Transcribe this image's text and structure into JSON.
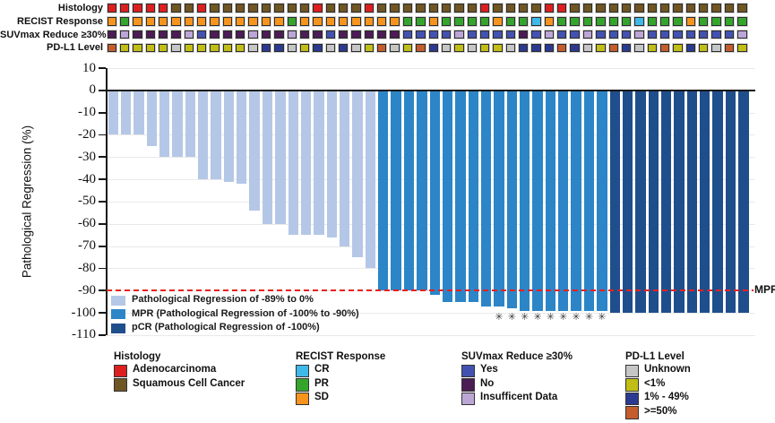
{
  "tracks": {
    "rows": [
      {
        "label": "Histology",
        "key": "histology",
        "cells": [
          "A",
          "A",
          "A",
          "A",
          "A",
          "S",
          "S",
          "A",
          "S",
          "S",
          "S",
          "S",
          "S",
          "S",
          "S",
          "S",
          "A",
          "S",
          "S",
          "S",
          "A",
          "S",
          "S",
          "S",
          "S",
          "S",
          "S",
          "S",
          "S",
          "A",
          "S",
          "S",
          "S",
          "S",
          "A",
          "A",
          "S",
          "S",
          "S",
          "S",
          "S",
          "S",
          "S",
          "S",
          "S",
          "S",
          "S",
          "S",
          "S",
          "S"
        ]
      },
      {
        "label": "RECIST Response",
        "key": "recist",
        "cells": [
          "SD",
          "PR",
          "SD",
          "SD",
          "SD",
          "SD",
          "SD",
          "SD",
          "SD",
          "SD",
          "SD",
          "SD",
          "SD",
          "SD",
          "PR",
          "SD",
          "SD",
          "SD",
          "SD",
          "SD",
          "SD",
          "SD",
          "SD",
          "PR",
          "PR",
          "SD",
          "PR",
          "PR",
          "PR",
          "PR",
          "SD",
          "PR",
          "PR",
          "CR",
          "SD",
          "PR",
          "PR",
          "PR",
          "PR",
          "PR",
          "PR",
          "CR",
          "PR",
          "PR",
          "PR",
          "SD",
          "PR",
          "PR",
          "PR",
          "PR"
        ]
      },
      {
        "label": "SUVmax Reduce ≥30%",
        "key": "suv",
        "cells": [
          "N",
          "I",
          "N",
          "N",
          "N",
          "N",
          "I",
          "Y",
          "N",
          "N",
          "N",
          "I",
          "N",
          "N",
          "I",
          "N",
          "N",
          "Y",
          "N",
          "N",
          "N",
          "N",
          "N",
          "Y",
          "Y",
          "Y",
          "Y",
          "I",
          "Y",
          "Y",
          "Y",
          "Y",
          "N",
          "Y",
          "I",
          "Y",
          "Y",
          "I",
          "Y",
          "Y",
          "Y",
          "I",
          "Y",
          "Y",
          "Y",
          "Y",
          "Y",
          "Y",
          "Y",
          "I"
        ]
      },
      {
        "label": "PD-L1 Level",
        "key": "pdl1",
        "cells": [
          "H",
          "L",
          "L",
          "L",
          "L",
          "U",
          "L",
          "L",
          "L",
          "L",
          "L",
          "U",
          "M",
          "M",
          "U",
          "L",
          "M",
          "U",
          "M",
          "U",
          "L",
          "H",
          "U",
          "L",
          "H",
          "M",
          "U",
          "L",
          "U",
          "L",
          "L",
          "U",
          "M",
          "M",
          "M",
          "H",
          "M",
          "U",
          "L",
          "H",
          "M",
          "U",
          "L",
          "H",
          "L",
          "M",
          "L",
          "U",
          "H",
          "L"
        ]
      }
    ],
    "palette": {
      "histology": {
        "A": {
          "label": "Adenocarcinoma",
          "color": "#DE1F1F"
        },
        "S": {
          "label": "Squamous Cell Cancer",
          "color": "#6F5623"
        }
      },
      "recist": {
        "CR": {
          "label": "CR",
          "color": "#3FB9E8"
        },
        "PR": {
          "label": "PR",
          "color": "#35A42D"
        },
        "SD": {
          "label": "SD",
          "color": "#F7941E"
        }
      },
      "suv": {
        "Y": {
          "label": "Yes",
          "color": "#4352B0"
        },
        "N": {
          "label": "No",
          "color": "#4C1C54"
        },
        "I": {
          "label": "Insufficent Data",
          "color": "#BCA6D6"
        }
      },
      "pdl1": {
        "U": {
          "label": "Unknown",
          "color": "#C6C6C6"
        },
        "L": {
          "label": "<1%",
          "color": "#C0BE17"
        },
        "M": {
          "label": "1% - 49%",
          "color": "#2B3A90"
        },
        "H": {
          "label": ">=50%",
          "color": "#C35D2D"
        }
      }
    }
  },
  "chart_data": {
    "type": "bar",
    "title": "",
    "xlabel": "",
    "ylabel": "Pathological Regression (%)",
    "ylim": [
      -110,
      10
    ],
    "yticks": [
      10,
      0,
      -10,
      -20,
      -30,
      -40,
      -50,
      -60,
      -70,
      -80,
      -90,
      -100,
      -110
    ],
    "grid": "horizontal",
    "reference_line": {
      "y": -90,
      "label": "MPR",
      "color": "#E8211D",
      "style": "dashed"
    },
    "bar_colors": {
      "reg": "#B5C7E6",
      "mpr": "#2C85C7",
      "pcr": "#1F4E8C"
    },
    "legend_position": "inside bottom-left",
    "legend": [
      {
        "key": "reg",
        "label": "Pathological Regression of -89% to 0%"
      },
      {
        "key": "mpr",
        "label": "MPR (Pathological Regression of -100% to -90%)"
      },
      {
        "key": "pcr",
        "label": "pCR (Pathological Regression of -100%)"
      }
    ],
    "asterisk_note": "asterisk marks shown under 9 bars",
    "bars": [
      {
        "value": -20,
        "class": "reg"
      },
      {
        "value": -20,
        "class": "reg"
      },
      {
        "value": -20,
        "class": "reg"
      },
      {
        "value": -25,
        "class": "reg"
      },
      {
        "value": -30,
        "class": "reg"
      },
      {
        "value": -30,
        "class": "reg"
      },
      {
        "value": -30,
        "class": "reg"
      },
      {
        "value": -40,
        "class": "reg"
      },
      {
        "value": -40,
        "class": "reg"
      },
      {
        "value": -41,
        "class": "reg"
      },
      {
        "value": -42,
        "class": "reg"
      },
      {
        "value": -54,
        "class": "reg"
      },
      {
        "value": -60,
        "class": "reg"
      },
      {
        "value": -60,
        "class": "reg"
      },
      {
        "value": -65,
        "class": "reg"
      },
      {
        "value": -65,
        "class": "reg"
      },
      {
        "value": -65,
        "class": "reg"
      },
      {
        "value": -66,
        "class": "reg"
      },
      {
        "value": -70,
        "class": "reg"
      },
      {
        "value": -75,
        "class": "reg"
      },
      {
        "value": -80,
        "class": "reg"
      },
      {
        "value": -90,
        "class": "mpr"
      },
      {
        "value": -90,
        "class": "mpr"
      },
      {
        "value": -90,
        "class": "mpr"
      },
      {
        "value": -90,
        "class": "mpr"
      },
      {
        "value": -92,
        "class": "mpr"
      },
      {
        "value": -95,
        "class": "mpr"
      },
      {
        "value": -95,
        "class": "mpr"
      },
      {
        "value": -95,
        "class": "mpr"
      },
      {
        "value": -97,
        "class": "mpr"
      },
      {
        "value": -97,
        "class": "mpr",
        "asterisk": true
      },
      {
        "value": -98,
        "class": "mpr",
        "asterisk": true
      },
      {
        "value": -99,
        "class": "mpr",
        "asterisk": true
      },
      {
        "value": -99,
        "class": "mpr",
        "asterisk": true
      },
      {
        "value": -99,
        "class": "mpr",
        "asterisk": true
      },
      {
        "value": -99,
        "class": "mpr",
        "asterisk": true
      },
      {
        "value": -99,
        "class": "mpr",
        "asterisk": true
      },
      {
        "value": -99,
        "class": "mpr",
        "asterisk": true
      },
      {
        "value": -99,
        "class": "mpr",
        "asterisk": true
      },
      {
        "value": -100,
        "class": "pcr"
      },
      {
        "value": -100,
        "class": "pcr"
      },
      {
        "value": -100,
        "class": "pcr"
      },
      {
        "value": -100,
        "class": "pcr"
      },
      {
        "value": -100,
        "class": "pcr"
      },
      {
        "value": -100,
        "class": "pcr"
      },
      {
        "value": -100,
        "class": "pcr"
      },
      {
        "value": -100,
        "class": "pcr"
      },
      {
        "value": -100,
        "class": "pcr"
      },
      {
        "value": -100,
        "class": "pcr"
      },
      {
        "value": -100,
        "class": "pcr"
      }
    ]
  },
  "bottom_legend": {
    "groups": [
      {
        "title": "Histology",
        "items": [
          {
            "label": "Adenocarcinoma",
            "color": "#DE1F1F"
          },
          {
            "label": "Squamous Cell Cancer",
            "color": "#6F5623"
          }
        ]
      },
      {
        "title": "RECIST Response",
        "items": [
          {
            "label": "CR",
            "color": "#3FB9E8"
          },
          {
            "label": "PR",
            "color": "#35A42D"
          },
          {
            "label": "SD",
            "color": "#F7941E"
          }
        ]
      },
      {
        "title": "SUVmax Reduce ≥30%",
        "items": [
          {
            "label": "Yes",
            "color": "#4352B0"
          },
          {
            "label": "No",
            "color": "#4C1C54"
          },
          {
            "label": "Insufficent Data",
            "color": "#BCA6D6"
          }
        ]
      },
      {
        "title": "PD-L1 Level",
        "items": [
          {
            "label": "Unknown",
            "color": "#C6C6C6"
          },
          {
            "label": "<1%",
            "color": "#C0BE17"
          },
          {
            "label": "1% - 49%",
            "color": "#2B3A90"
          },
          {
            "label": ">=50%",
            "color": "#C35D2D"
          }
        ]
      }
    ]
  }
}
